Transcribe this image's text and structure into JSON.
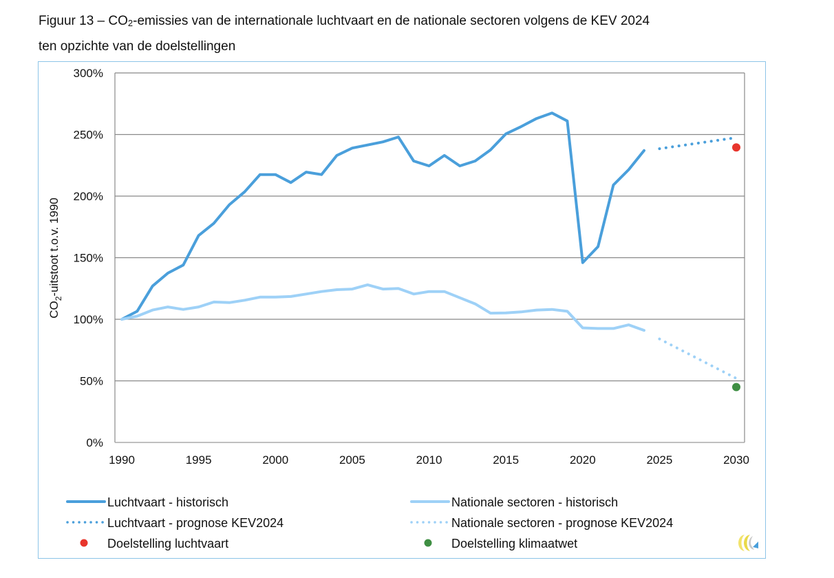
{
  "figure": {
    "title_line1_pre": "Figuur 13 – CO",
    "title_line1_sub": "2",
    "title_line1_post": "-emissies van de internationale luchtvaart en de nationale sectoren volgens de KEV 2024",
    "title_line2": "ten opzichte van de doelstellingen"
  },
  "chart_data": {
    "type": "line",
    "title": "Figuur 13 – CO2-emissies van de internationale luchtvaart en de nationale sectoren volgens de KEV 2024 ten opzichte van de doelstellingen",
    "xlabel": "",
    "ylabel": "CO2-uitstoot t.o.v. 1990",
    "ylabel_pre": "CO",
    "ylabel_sub": "2",
    "ylabel_post": "-uitstoot t.o.v. 1990",
    "xlim": [
      1990,
      2030
    ],
    "ylim": [
      0,
      300
    ],
    "grid": true,
    "legend_position": "bottom",
    "x_ticks": [
      1990,
      1995,
      2000,
      2005,
      2010,
      2015,
      2020,
      2025,
      2030
    ],
    "x_tick_labels": [
      "1990",
      "1995",
      "2000",
      "2005",
      "2010",
      "2015",
      "2020",
      "2025",
      "2030"
    ],
    "y_ticks": [
      0,
      50,
      100,
      150,
      200,
      250,
      300
    ],
    "y_tick_labels": [
      "0%",
      "50%",
      "100%",
      "150%",
      "200%",
      "250%",
      "300%"
    ],
    "colors": {
      "luchtvaart": "#4a9fdb",
      "nationale": "#9ed1f7",
      "doel_luchtvaart": "#e8352c",
      "doel_klimaatwet": "#3f8f43",
      "grid": "#888888",
      "frame": "#8cc4e8"
    },
    "series": [
      {
        "name": "Luchtvaart - historisch",
        "style": "solid",
        "color_key": "luchtvaart",
        "x": [
          1990,
          1991,
          1992,
          1993,
          1994,
          1995,
          1996,
          1997,
          1998,
          1999,
          2000,
          2001,
          2002,
          2003,
          2004,
          2005,
          2006,
          2007,
          2008,
          2009,
          2010,
          2011,
          2012,
          2013,
          2014,
          2015,
          2016,
          2017,
          2018,
          2019,
          2020,
          2021,
          2022,
          2023,
          2024
        ],
        "values": [
          100,
          106.5,
          127,
          137.5,
          144,
          168,
          178,
          193,
          203.5,
          217.5,
          217.5,
          211,
          219.5,
          217.5,
          233,
          239,
          241.5,
          244,
          248,
          228.5,
          224.5,
          233,
          224.5,
          228.5,
          237.5,
          250.5,
          256.5,
          263,
          267.5,
          261,
          146,
          159,
          209,
          221.5,
          237
        ]
      },
      {
        "name": "Luchtvaart - prognose KEV2024",
        "style": "dotted",
        "color_key": "luchtvaart",
        "x": [
          2025,
          2030
        ],
        "values": [
          238.5,
          247.5
        ]
      },
      {
        "name": "Doelstelling luchtvaart",
        "style": "marker",
        "color_key": "doel_luchtvaart",
        "x": [
          2030
        ],
        "values": [
          239.5
        ]
      },
      {
        "name": "Nationale sectoren - historisch",
        "style": "solid",
        "color_key": "nationale",
        "x": [
          1990,
          1991,
          1992,
          1993,
          1994,
          1995,
          1996,
          1997,
          1998,
          1999,
          2000,
          2001,
          2002,
          2003,
          2004,
          2005,
          2006,
          2007,
          2008,
          2009,
          2010,
          2011,
          2012,
          2013,
          2014,
          2015,
          2016,
          2017,
          2018,
          2019,
          2020,
          2021,
          2022,
          2023,
          2024
        ],
        "values": [
          100,
          102.5,
          107.5,
          110,
          108,
          110,
          114,
          113.5,
          115.5,
          118,
          118,
          118.5,
          120.5,
          122.5,
          124,
          124.5,
          128,
          124.5,
          125,
          120.5,
          122.5,
          122.5,
          117.5,
          112.5,
          105,
          105.2,
          106,
          107.5,
          108,
          106.5,
          93,
          92.5,
          92.5,
          95.5,
          91
        ]
      },
      {
        "name": "Nationale sectoren - prognose KEV2024",
        "style": "dotted",
        "color_key": "nationale",
        "x": [
          2025,
          2030
        ],
        "values": [
          84,
          52
        ]
      },
      {
        "name": "Doelstelling klimaatwet",
        "style": "marker",
        "color_key": "doel_klimaatwet",
        "x": [
          2030
        ],
        "values": [
          45
        ]
      }
    ],
    "legend": [
      {
        "label": "Luchtvaart - historisch",
        "style": "solid",
        "color_key": "luchtvaart"
      },
      {
        "label": "Nationale sectoren - historisch",
        "style": "solid",
        "color_key": "nationale"
      },
      {
        "label": "Luchtvaart - prognose KEV2024",
        "style": "dotted",
        "color_key": "luchtvaart"
      },
      {
        "label": "Nationale sectoren - prognose KEV2024",
        "style": "dotted",
        "color_key": "nationale"
      },
      {
        "label": "Doelstelling luchtvaart",
        "style": "marker",
        "color_key": "doel_luchtvaart"
      },
      {
        "label": "Doelstelling klimaatwet",
        "style": "marker",
        "color_key": "doel_klimaatwet"
      }
    ]
  },
  "logo": {
    "icon": "pbl-logo-icon"
  }
}
